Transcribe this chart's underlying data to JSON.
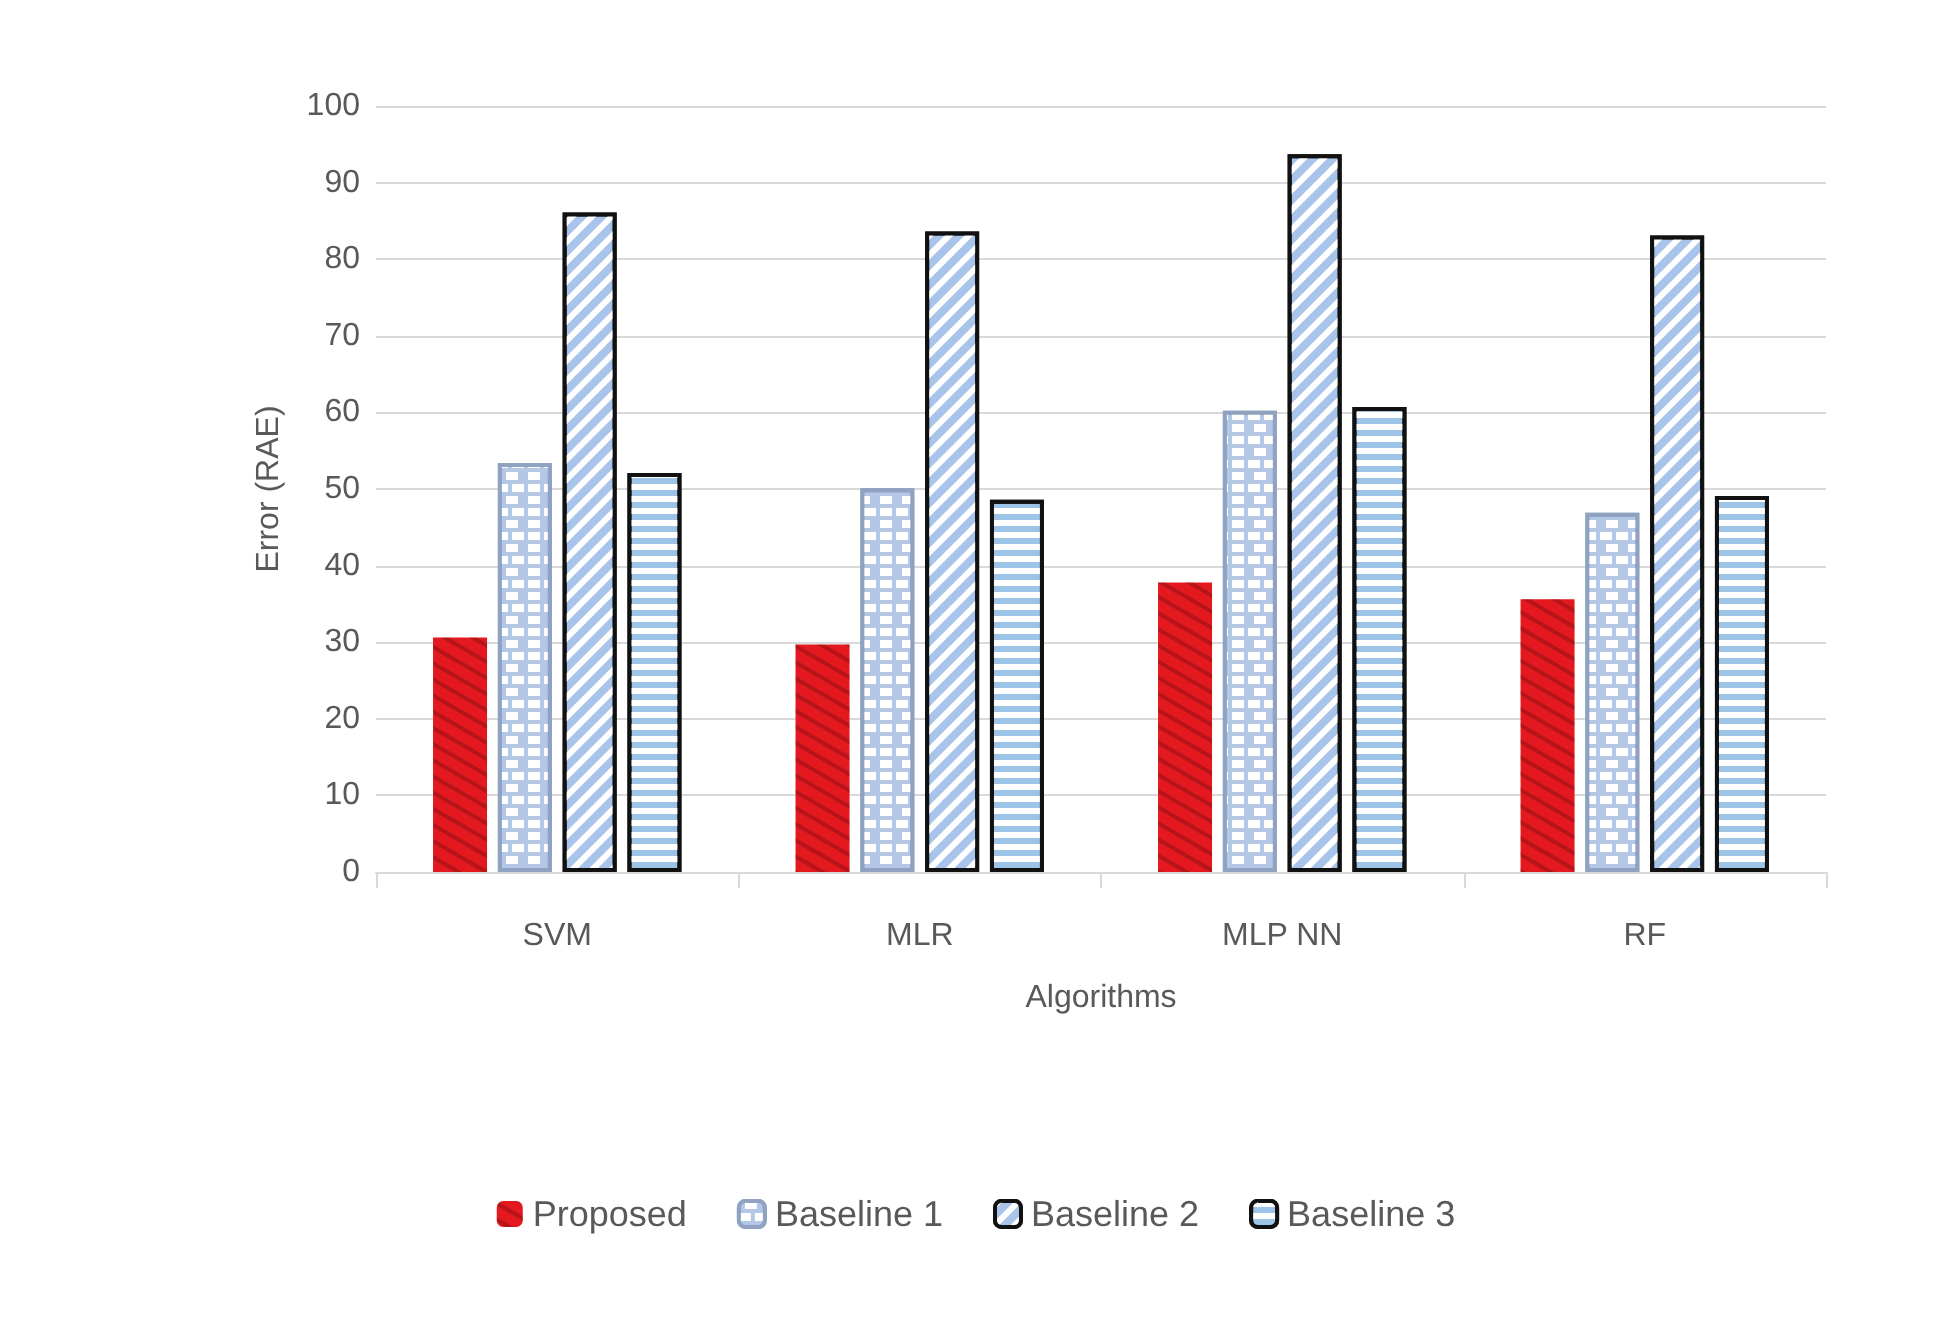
{
  "chart_data": {
    "type": "bar",
    "xlabel": "Algorithms",
    "ylabel": "Error (RAE)",
    "categories": [
      "SVM",
      "MLR",
      "MLP NN",
      "RF"
    ],
    "series": [
      {
        "name": "Proposed",
        "color": "#e3191f",
        "values": [
          30.6,
          29.7,
          37.8,
          35.6
        ]
      },
      {
        "name": "Baseline 1",
        "color": "#b4c7e7",
        "values": [
          53.4,
          50.1,
          60.2,
          46.9
        ]
      },
      {
        "name": "Baseline 2",
        "color": "#a9c4ea",
        "values": [
          86.1,
          83.6,
          93.7,
          83.1
        ]
      },
      {
        "name": "Baseline 3",
        "color": "#9dc3e6",
        "values": [
          52.1,
          48.6,
          60.7,
          49.1
        ]
      }
    ],
    "ylim": [
      0,
      100
    ],
    "yticks": [
      0,
      10,
      20,
      30,
      40,
      50,
      60,
      70,
      80,
      90,
      100
    ],
    "grid": "y",
    "legend": "bottom"
  }
}
